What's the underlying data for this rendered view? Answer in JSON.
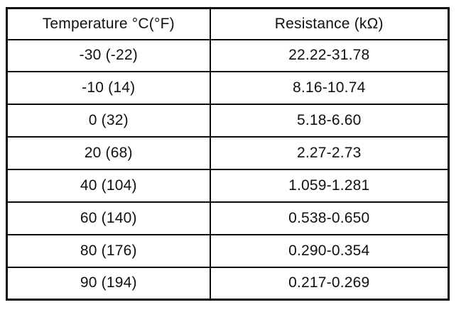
{
  "table": {
    "headers": [
      "Temperature °C(°F)",
      "Resistance (kΩ)"
    ],
    "rows": [
      [
        "-30 (-22)",
        "22.22-31.78"
      ],
      [
        "-10 (14)",
        "8.16-10.74"
      ],
      [
        "0 (32)",
        "5.18-6.60"
      ],
      [
        "20 (68)",
        "2.27-2.73"
      ],
      [
        "40 (104)",
        "1.059-1.281"
      ],
      [
        "60 (140)",
        "0.538-0.650"
      ],
      [
        "80 (176)",
        "0.290-0.354"
      ],
      [
        "90 (194)",
        "0.217-0.269"
      ]
    ]
  }
}
